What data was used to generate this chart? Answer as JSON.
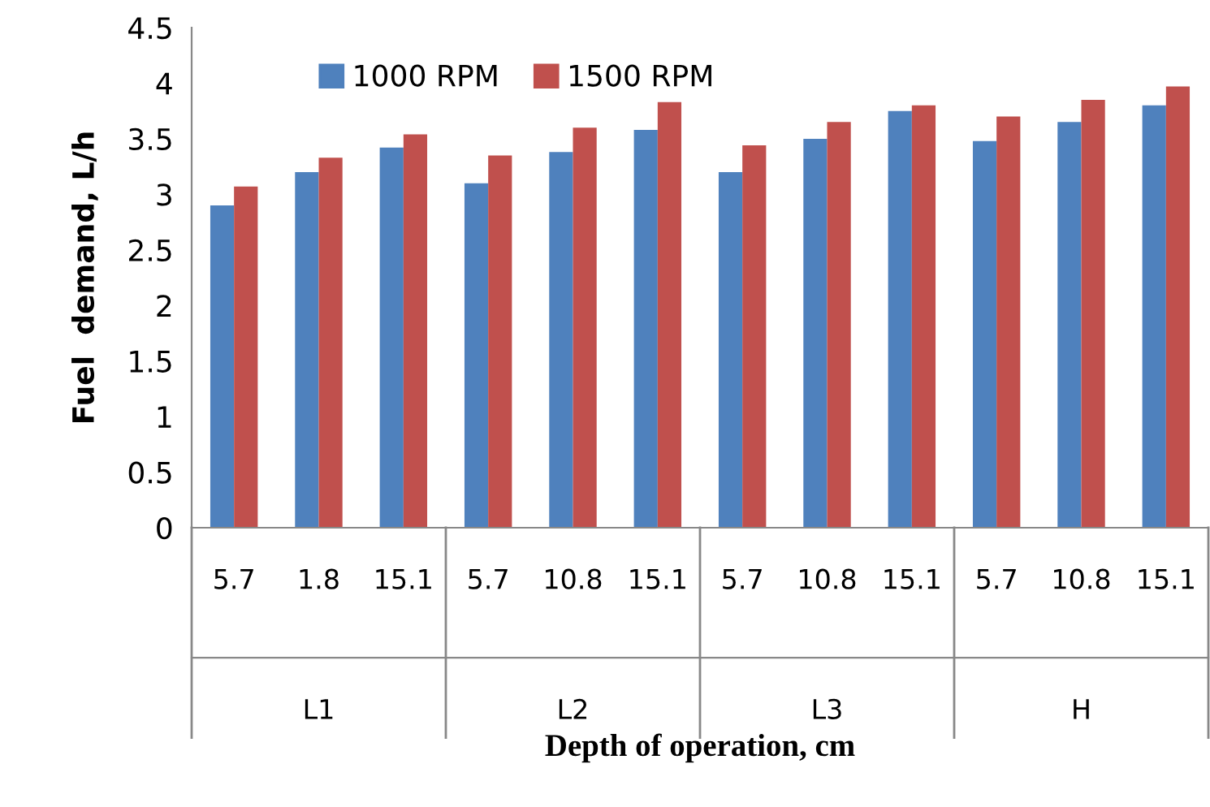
{
  "chart_data": {
    "type": "bar",
    "xlabel": "Depth of operation, cm",
    "ylabel": "Fuel  demand, L/h",
    "categories": [
      "5.7",
      "1.8",
      "15.1",
      "5.7",
      "10.8",
      "15.1",
      "5.7",
      "10.8",
      "15.1",
      "5.7",
      "10.8",
      "15.1"
    ],
    "series": [
      {
        "name": "1000 RPM",
        "color": "#4f81bd",
        "values": [
          2.9,
          3.2,
          3.42,
          3.1,
          3.38,
          3.58,
          3.2,
          3.5,
          3.75,
          3.48,
          3.65,
          3.8
        ]
      },
      {
        "name": "1500 RPM",
        "color": "#c0504d",
        "values": [
          3.07,
          3.33,
          3.54,
          3.35,
          3.6,
          3.83,
          3.44,
          3.65,
          3.8,
          3.7,
          3.85,
          3.97
        ]
      }
    ],
    "annotations": [
      "L1",
      "L2",
      "L3",
      "H"
    ],
    "ylim": [
      0,
      4.5
    ],
    "yticks": [
      0,
      0.5,
      1,
      1.5,
      2,
      2.5,
      3,
      3.5,
      4,
      4.5
    ],
    "grid": false,
    "legend": "top"
  }
}
